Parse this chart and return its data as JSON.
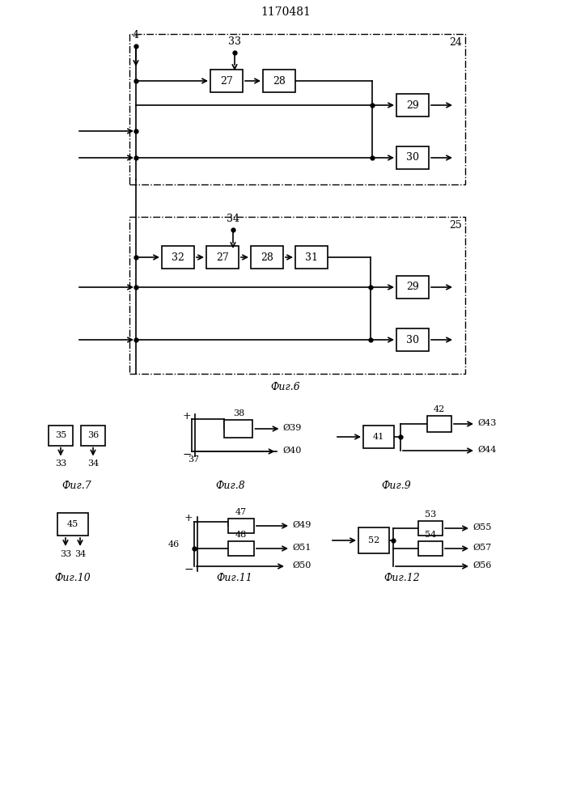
{
  "title": "1170481",
  "bg_color": "#ffffff",
  "fig6_label": "Фиг.6",
  "fig7_label": "Фиг.7",
  "fig8_label": "Фиг.8",
  "fig9_label": "Фиг.9",
  "fig10_label": "Фиг.10",
  "fig11_label": "Фиг.11",
  "fig12_label": "Фиг.12"
}
